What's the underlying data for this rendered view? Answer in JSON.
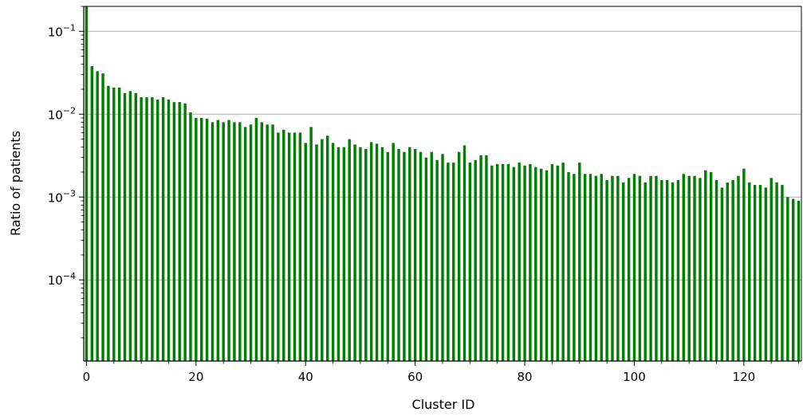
{
  "chart_data": {
    "type": "bar",
    "xlabel": "Cluster ID",
    "ylabel": "Ratio of patients",
    "y_scale": "log",
    "ylim": [
      1.05e-05,
      0.2
    ],
    "xlim": [
      -0.5,
      130.5
    ],
    "grid": {
      "y_major": true,
      "x": false
    },
    "bar_color": "#007f00",
    "grid_color": "#b0b0b0",
    "x_ticks": [
      "0",
      "20",
      "40",
      "60",
      "80",
      "100",
      "120"
    ],
    "y_ticks": [
      {
        "value": 0.1,
        "base": "10",
        "exp": "−1"
      },
      {
        "value": 0.01,
        "base": "10",
        "exp": "−2"
      },
      {
        "value": 0.001,
        "base": "10",
        "exp": "−3"
      },
      {
        "value": 0.0001,
        "base": "10",
        "exp": "−4"
      }
    ],
    "x": [
      0,
      1,
      2,
      3,
      4,
      5,
      6,
      7,
      8,
      9,
      10,
      11,
      12,
      13,
      14,
      15,
      16,
      17,
      18,
      19,
      20,
      21,
      22,
      23,
      24,
      25,
      26,
      27,
      28,
      29,
      30,
      31,
      32,
      33,
      34,
      35,
      36,
      37,
      38,
      39,
      40,
      41,
      42,
      43,
      44,
      45,
      46,
      47,
      48,
      49,
      50,
      51,
      52,
      53,
      54,
      55,
      56,
      57,
      58,
      59,
      60,
      61,
      62,
      63,
      64,
      65,
      66,
      67,
      68,
      69,
      70,
      71,
      72,
      73,
      74,
      75,
      76,
      77,
      78,
      79,
      80,
      81,
      82,
      83,
      84,
      85,
      86,
      87,
      88,
      89,
      90,
      91,
      92,
      93,
      94,
      95,
      96,
      97,
      98,
      99,
      100,
      101,
      102,
      103,
      104,
      105,
      106,
      107,
      108,
      109,
      110,
      111,
      112,
      113,
      114,
      115,
      116,
      117,
      118,
      119,
      120,
      121,
      122,
      123,
      124,
      125,
      126,
      127,
      128,
      129,
      130
    ],
    "values": [
      0.25,
      0.038,
      0.033,
      0.031,
      0.022,
      0.021,
      0.021,
      0.018,
      0.019,
      0.018,
      0.016,
      0.016,
      0.016,
      0.015,
      0.016,
      0.015,
      0.014,
      0.014,
      0.0135,
      0.0105,
      0.009,
      0.009,
      0.0088,
      0.008,
      0.0085,
      0.008,
      0.0085,
      0.008,
      0.008,
      0.007,
      0.0075,
      0.009,
      0.008,
      0.0075,
      0.0075,
      0.006,
      0.0065,
      0.006,
      0.006,
      0.006,
      0.0045,
      0.007,
      0.0043,
      0.005,
      0.0055,
      0.0045,
      0.004,
      0.004,
      0.005,
      0.0043,
      0.004,
      0.0038,
      0.0046,
      0.0044,
      0.004,
      0.0035,
      0.0045,
      0.0038,
      0.0035,
      0.004,
      0.0038,
      0.0035,
      0.003,
      0.0035,
      0.0028,
      0.0033,
      0.0026,
      0.0026,
      0.0035,
      0.0042,
      0.0026,
      0.0028,
      0.0032,
      0.0032,
      0.0024,
      0.0025,
      0.0025,
      0.0025,
      0.0023,
      0.0026,
      0.0024,
      0.0025,
      0.0023,
      0.0022,
      0.0021,
      0.0025,
      0.0024,
      0.0026,
      0.002,
      0.0019,
      0.0026,
      0.0019,
      0.0019,
      0.0018,
      0.0019,
      0.0016,
      0.0018,
      0.0018,
      0.0015,
      0.0017,
      0.0019,
      0.0018,
      0.0015,
      0.0018,
      0.0018,
      0.0016,
      0.0016,
      0.0015,
      0.0016,
      0.0019,
      0.0018,
      0.0018,
      0.0017,
      0.0021,
      0.002,
      0.0016,
      0.0013,
      0.0015,
      0.0016,
      0.0018,
      0.0022,
      0.0015,
      0.0014,
      0.0014,
      0.0013,
      0.0017,
      0.0015,
      0.0014,
      0.001,
      0.00095,
      0.0009
    ]
  }
}
